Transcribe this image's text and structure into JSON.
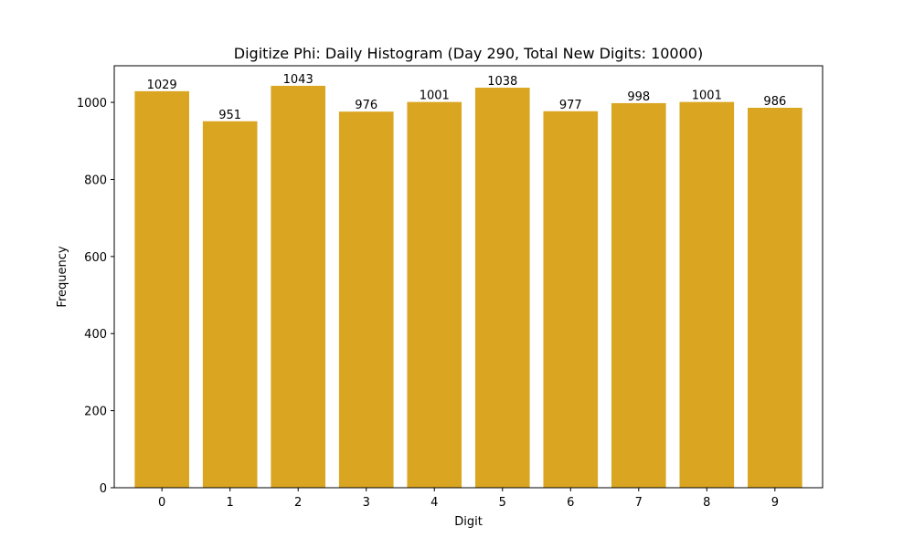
{
  "chart_data": {
    "type": "bar",
    "title": "Digitize Phi: Daily Histogram (Day 290, Total New Digits: 10000)",
    "xlabel": "Digit",
    "ylabel": "Frequency",
    "categories": [
      "0",
      "1",
      "2",
      "3",
      "4",
      "5",
      "6",
      "7",
      "8",
      "9"
    ],
    "values": [
      1029,
      951,
      1043,
      976,
      1001,
      1038,
      977,
      998,
      1001,
      986
    ],
    "ylim": [
      0,
      1095
    ],
    "yticks": [
      0,
      200,
      400,
      600,
      800,
      1000
    ],
    "bar_color": "#DAA520",
    "grid": false,
    "show_value_labels": true
  }
}
